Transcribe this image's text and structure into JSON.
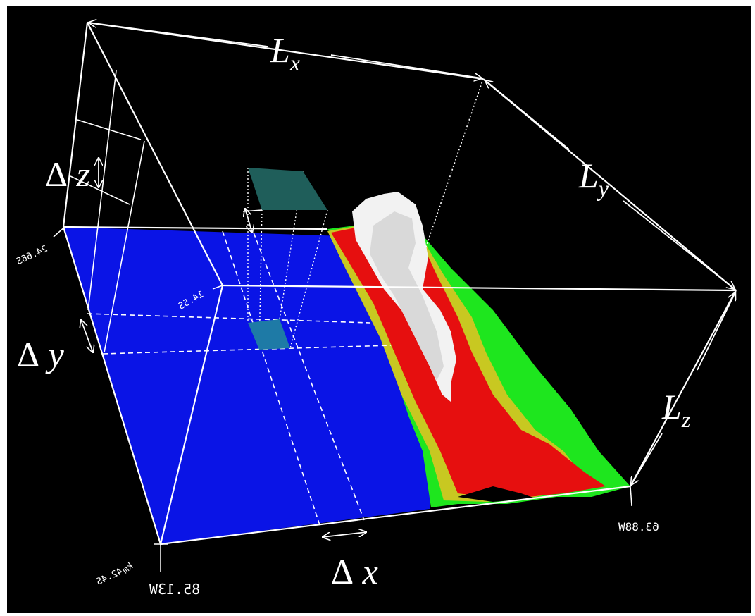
{
  "labels": {
    "Lx": {
      "base": "L",
      "sub": "x"
    },
    "Ly": {
      "base": "L",
      "sub": "y"
    },
    "Lz": {
      "base": "L",
      "sub": "z"
    },
    "dx": {
      "delta": "Δ",
      "var": "x"
    },
    "dy": {
      "delta": "Δ",
      "var": "y"
    },
    "dz": {
      "delta": "Δ",
      "var": "z"
    }
  },
  "ticks": {
    "lat_top": "24.66S",
    "lat_mid": "14.5S",
    "lat_bottom": "42.4S",
    "lon_left": "85.13W",
    "lon_right": "63.88W",
    "unit": "km"
  },
  "colors": {
    "background": "#000000",
    "ocean": "#0a14e6",
    "red": "#e60f0f",
    "yellow": "#c8c821",
    "green": "#1ee61e",
    "white": "#f2f2f2",
    "cell": "#1f5e5a"
  }
}
